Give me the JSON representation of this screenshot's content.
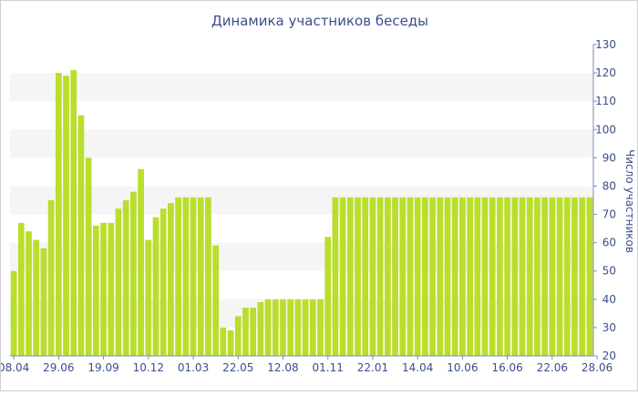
{
  "chart_data": {
    "type": "bar",
    "title": "Динамика участников беседы",
    "ylabel": "Число участников",
    "xlabel": "",
    "ylim": [
      20,
      130
    ],
    "yticks": [
      20,
      30,
      40,
      50,
      60,
      70,
      80,
      90,
      100,
      110,
      120,
      130
    ],
    "y_axis_position": "right",
    "grid": "alternating horizontal bands",
    "legend": "none",
    "bar_color": "#b9de2c",
    "title_color": "#3b4e8c",
    "axis_text_color": "#3b4e8c",
    "band_color": "#f5f5f5",
    "values": [
      50,
      67,
      64,
      61,
      58,
      75,
      120,
      119,
      121,
      105,
      90,
      66,
      67,
      67,
      72,
      75,
      78,
      86,
      61,
      69,
      72,
      74,
      76,
      76,
      76,
      76,
      76,
      59,
      30,
      29,
      34,
      37,
      37,
      39,
      40,
      40,
      40,
      40,
      40,
      40,
      40,
      40,
      62,
      76,
      76,
      76,
      76,
      76,
      76,
      76,
      76,
      76,
      76,
      76,
      76,
      76,
      76,
      76,
      76,
      76,
      76,
      76,
      76,
      76,
      76,
      76,
      76,
      76,
      76,
      76,
      76,
      76,
      76,
      76,
      76,
      76,
      76,
      76
    ],
    "tick_labels": [
      {
        "index": 0,
        "label": "08.04"
      },
      {
        "index": 6,
        "label": "29.06"
      },
      {
        "index": 12,
        "label": "19.09"
      },
      {
        "index": 18,
        "label": "10.12"
      },
      {
        "index": 24,
        "label": "01.03"
      },
      {
        "index": 30,
        "label": "22.05"
      },
      {
        "index": 36,
        "label": "12.08"
      },
      {
        "index": 42,
        "label": "01.11"
      },
      {
        "index": 48,
        "label": "22.01"
      },
      {
        "index": 54,
        "label": "14.04"
      },
      {
        "index": 60,
        "label": "10.06"
      },
      {
        "index": 66,
        "label": "16.06"
      },
      {
        "index": 72,
        "label": "22.06"
      },
      {
        "index": 78,
        "label": "28.06"
      }
    ]
  }
}
